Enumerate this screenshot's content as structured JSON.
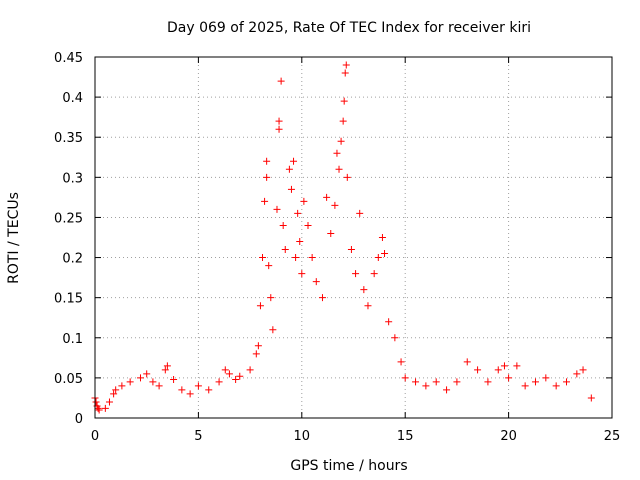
{
  "chart_data": {
    "type": "scatter",
    "title": "Day 069 of 2025, Rate Of TEC Index for receiver kiri",
    "xlabel": "GPS time / hours",
    "ylabel": "ROTI / TECUs",
    "xlim": [
      0,
      25
    ],
    "ylim": [
      0,
      0.45
    ],
    "xticks": [
      0,
      5,
      10,
      15,
      20,
      25
    ],
    "xtick_labels": [
      "0",
      "5",
      "10",
      "15",
      "20",
      "25"
    ],
    "yticks": [
      0,
      0.05,
      0.1,
      0.15,
      0.2,
      0.25,
      0.3,
      0.35,
      0.4,
      0.45
    ],
    "ytick_labels": [
      "0",
      "0.05",
      "0.1",
      "0.15",
      "0.2",
      "0.25",
      "0.3",
      "0.35",
      "0.4",
      "0.45"
    ],
    "grid": true,
    "marker": "+",
    "marker_color": "#ff0000",
    "series": [
      {
        "name": "ROTI",
        "points": [
          [
            0.0,
            0.025
          ],
          [
            0.05,
            0.02
          ],
          [
            0.1,
            0.015
          ],
          [
            0.15,
            0.012
          ],
          [
            0.2,
            0.01
          ],
          [
            0.5,
            0.012
          ],
          [
            0.7,
            0.02
          ],
          [
            0.9,
            0.03
          ],
          [
            1.0,
            0.035
          ],
          [
            1.3,
            0.04
          ],
          [
            1.7,
            0.045
          ],
          [
            2.2,
            0.05
          ],
          [
            2.5,
            0.055
          ],
          [
            2.8,
            0.045
          ],
          [
            3.1,
            0.04
          ],
          [
            3.4,
            0.06
          ],
          [
            3.5,
            0.065
          ],
          [
            3.8,
            0.048
          ],
          [
            4.2,
            0.035
          ],
          [
            4.6,
            0.03
          ],
          [
            5.0,
            0.04
          ],
          [
            5.5,
            0.035
          ],
          [
            6.0,
            0.045
          ],
          [
            6.3,
            0.06
          ],
          [
            6.5,
            0.055
          ],
          [
            6.8,
            0.048
          ],
          [
            7.0,
            0.052
          ],
          [
            7.5,
            0.06
          ],
          [
            7.8,
            0.08
          ],
          [
            7.9,
            0.09
          ],
          [
            8.0,
            0.14
          ],
          [
            8.1,
            0.2
          ],
          [
            8.2,
            0.27
          ],
          [
            8.3,
            0.3
          ],
          [
            8.3,
            0.32
          ],
          [
            8.4,
            0.19
          ],
          [
            8.5,
            0.15
          ],
          [
            8.6,
            0.11
          ],
          [
            8.8,
            0.26
          ],
          [
            8.9,
            0.36
          ],
          [
            8.9,
            0.37
          ],
          [
            9.0,
            0.42
          ],
          [
            9.1,
            0.24
          ],
          [
            9.2,
            0.21
          ],
          [
            9.4,
            0.31
          ],
          [
            9.5,
            0.285
          ],
          [
            9.6,
            0.32
          ],
          [
            9.7,
            0.2
          ],
          [
            9.8,
            0.255
          ],
          [
            9.9,
            0.22
          ],
          [
            10.0,
            0.18
          ],
          [
            10.1,
            0.27
          ],
          [
            10.3,
            0.24
          ],
          [
            10.5,
            0.2
          ],
          [
            10.7,
            0.17
          ],
          [
            11.0,
            0.15
          ],
          [
            11.2,
            0.275
          ],
          [
            11.4,
            0.23
          ],
          [
            11.6,
            0.265
          ],
          [
            11.7,
            0.33
          ],
          [
            11.8,
            0.31
          ],
          [
            11.9,
            0.345
          ],
          [
            12.0,
            0.37
          ],
          [
            12.05,
            0.395
          ],
          [
            12.1,
            0.43
          ],
          [
            12.15,
            0.44
          ],
          [
            12.2,
            0.3
          ],
          [
            12.4,
            0.21
          ],
          [
            12.6,
            0.18
          ],
          [
            12.8,
            0.255
          ],
          [
            13.0,
            0.16
          ],
          [
            13.2,
            0.14
          ],
          [
            13.5,
            0.18
          ],
          [
            13.7,
            0.2
          ],
          [
            13.9,
            0.225
          ],
          [
            14.0,
            0.205
          ],
          [
            14.2,
            0.12
          ],
          [
            14.5,
            0.1
          ],
          [
            14.8,
            0.07
          ],
          [
            15.0,
            0.05
          ],
          [
            15.5,
            0.045
          ],
          [
            16.0,
            0.04
          ],
          [
            16.5,
            0.045
          ],
          [
            17.0,
            0.035
          ],
          [
            17.5,
            0.045
          ],
          [
            18.0,
            0.07
          ],
          [
            18.5,
            0.06
          ],
          [
            19.0,
            0.045
          ],
          [
            19.5,
            0.06
          ],
          [
            19.8,
            0.065
          ],
          [
            20.0,
            0.05
          ],
          [
            20.4,
            0.065
          ],
          [
            20.8,
            0.04
          ],
          [
            21.3,
            0.045
          ],
          [
            21.8,
            0.05
          ],
          [
            22.3,
            0.04
          ],
          [
            22.8,
            0.045
          ],
          [
            23.3,
            0.055
          ],
          [
            23.6,
            0.06
          ],
          [
            24.0,
            0.025
          ]
        ]
      }
    ]
  }
}
